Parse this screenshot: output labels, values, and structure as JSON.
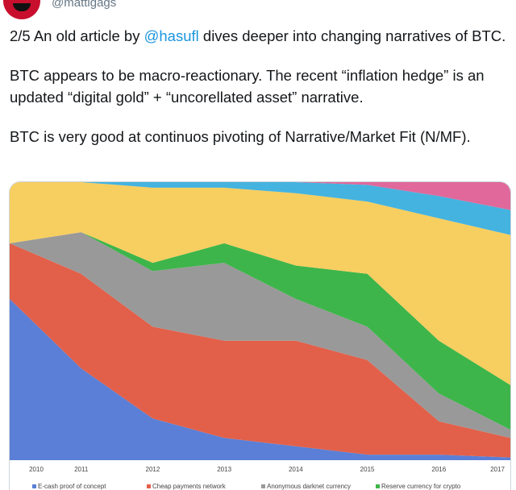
{
  "tweet": {
    "handle": "@mattigags",
    "para1_prefix": "2/5 An old article by ",
    "para1_mention": "@hasufl",
    "para1_suffix": " dives deeper into changing narratives of BTC.",
    "para2": "BTC appears to be macro-reactionary. The recent “inflation hedge” is an updated “digital gold” + “uncorellated asset” narrative.",
    "para3": "BTC is very good at continuos pivoting of Narrative/Market Fit (N/MF)."
  },
  "chart_data": {
    "type": "area",
    "stacked": true,
    "normalized": true,
    "x": [
      "2010",
      "2011",
      "2012",
      "2013",
      "2014",
      "2015",
      "2016",
      "2017"
    ],
    "series": [
      {
        "name": "E-cash proof of concept",
        "color": "#5b7fd6",
        "values": [
          0.58,
          0.33,
          0.15,
          0.08,
          0.05,
          0.02,
          0.02,
          0.01
        ]
      },
      {
        "name": "Cheap payments network",
        "color": "#e2604a",
        "values": [
          0.2,
          0.34,
          0.33,
          0.35,
          0.38,
          0.34,
          0.12,
          0.07
        ]
      },
      {
        "name": "Anonymous darknet currency",
        "color": "#999999",
        "values": [
          0.0,
          0.15,
          0.2,
          0.28,
          0.15,
          0.12,
          0.1,
          0.03
        ]
      },
      {
        "name": "Reserve currency for crypto",
        "color": "#3db54a",
        "values": [
          0.0,
          0.0,
          0.03,
          0.07,
          0.12,
          0.19,
          0.19,
          0.16
        ]
      },
      {
        "name": "",
        "color": "#f7ce60",
        "values": [
          0.22,
          0.18,
          0.27,
          0.2,
          0.26,
          0.26,
          0.44,
          0.54
        ]
      },
      {
        "name": "",
        "color": "#44b3e0",
        "values": [
          0.0,
          0.0,
          0.02,
          0.02,
          0.04,
          0.06,
          0.08,
          0.09
        ]
      },
      {
        "name": "",
        "color": "#e0689a",
        "values": [
          0.0,
          0.0,
          0.0,
          0.0,
          0.0,
          0.01,
          0.05,
          0.1
        ]
      }
    ]
  }
}
